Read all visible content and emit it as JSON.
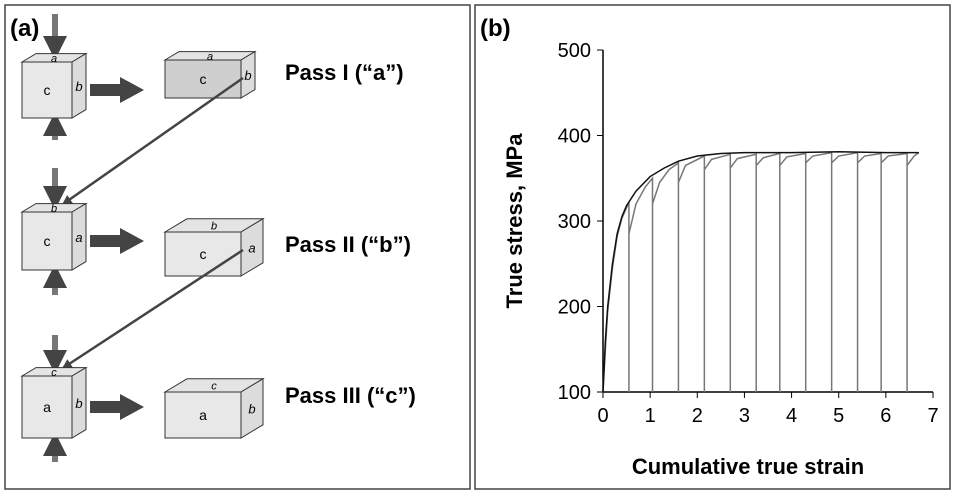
{
  "panel_a": {
    "label": "(a)",
    "passes": [
      {
        "label": "Pass I (“a”)",
        "before": {
          "front": "c",
          "side": "b",
          "top": "a"
        },
        "after": {
          "front": "c",
          "side": "b",
          "top": "a"
        }
      },
      {
        "label": "Pass II (“b”)",
        "before": {
          "front": "c",
          "side": "a",
          "top": "b"
        },
        "after": {
          "front": "c",
          "side": "a",
          "top": "b"
        }
      },
      {
        "label": "Pass III (“c”)",
        "before": {
          "front": "a",
          "side": "b",
          "top": "c"
        },
        "after": {
          "front": "a",
          "side": "b",
          "top": "c"
        }
      }
    ]
  },
  "chart_data": {
    "type": "line",
    "panel_label": "(b)",
    "xlabel": "Cumulative true strain",
    "ylabel": "True stress, MPa",
    "xlim": [
      0,
      7
    ],
    "ylim": [
      100,
      500
    ],
    "xticks": [
      0,
      1,
      2,
      3,
      4,
      5,
      6,
      7
    ],
    "yticks": [
      100,
      200,
      300,
      400,
      500
    ],
    "grid": false,
    "series": [
      {
        "color": "#777777",
        "x": [
          0,
          0.05,
          0.1,
          0.2,
          0.3,
          0.4,
          0.55,
          0.55,
          0.55,
          0.7,
          0.9,
          1.05,
          1.05,
          1.05,
          1.2,
          1.4,
          1.6,
          1.6,
          1.6,
          1.75,
          2.15,
          2.15,
          2.15,
          2.3,
          2.7,
          2.7,
          2.7,
          2.85,
          3.25,
          3.25,
          3.25,
          3.4,
          3.75,
          3.75,
          3.75,
          3.9,
          4.3,
          4.3,
          4.3,
          4.45,
          4.85,
          4.85,
          4.85,
          5.0,
          5.4,
          5.4,
          5.4,
          5.55,
          5.9,
          5.9,
          5.9,
          6.05,
          6.45,
          6.45,
          6.45,
          6.6,
          6.7
        ],
        "values": [
          100,
          150,
          195,
          245,
          282,
          303,
          322,
          100,
          285,
          320,
          340,
          350,
          100,
          320,
          345,
          360,
          368,
          100,
          345,
          365,
          376,
          100,
          360,
          372,
          378,
          100,
          362,
          373,
          378,
          100,
          365,
          374,
          379,
          100,
          365,
          375,
          379,
          100,
          368,
          376,
          380,
          100,
          368,
          376,
          380,
          100,
          368,
          376,
          379,
          100,
          368,
          376,
          379,
          100,
          365,
          376,
          380
        ]
      },
      {
        "color": "#111111",
        "x": [
          0,
          0.05,
          0.1,
          0.2,
          0.3,
          0.4,
          0.5,
          0.7,
          1,
          1.3,
          1.6,
          2,
          2.5,
          3,
          4,
          5,
          6,
          6.7
        ],
        "values": [
          100,
          160,
          200,
          250,
          285,
          305,
          318,
          335,
          352,
          362,
          370,
          376,
          379,
          380,
          380,
          381,
          380,
          380
        ]
      }
    ]
  }
}
